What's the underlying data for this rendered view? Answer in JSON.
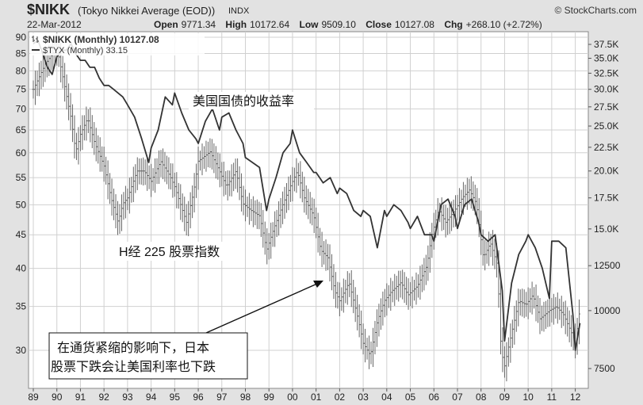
{
  "header": {
    "symbol": "$NIKK",
    "description": "(Tokyo Nikkei Average (EOD))",
    "exchange": "INDX",
    "brand": "© StockCharts.com",
    "date": "22-Mar-2012",
    "open_label": "Open",
    "open_value": "9771.34",
    "high_label": "High",
    "high_value": "10172.64",
    "low_label": "Low",
    "low_value": "9509.10",
    "close_label": "Close",
    "close_value": "10127.08",
    "chg_label": "Chg",
    "chg_value": "+268.10 (+2.72%)"
  },
  "legend": [
    {
      "label": "$NIKK (Monthly) 10127.08",
      "color": "#555555",
      "icon": "ohlc-bar-icon"
    },
    {
      "label": "$TYX (Monthly) 33.15",
      "color": "#333333",
      "icon": "line-icon"
    }
  ],
  "annotations": {
    "treasury": "美国国债的收益率",
    "nikkei": "H经 225 股票指数",
    "callout_line1": "在通货紧缩的影响下，日本",
    "callout_line2": "股票下跌会让美国利率也下跌"
  },
  "colors": {
    "background": "#e2e2e2",
    "plot": "#ffffff",
    "grid": "#cccccc",
    "nikkei": "#555555",
    "tyx": "#333333"
  },
  "chart_data": {
    "type": "line",
    "x_tick_labels": [
      "89",
      "90",
      "91",
      "92",
      "93",
      "94",
      "95",
      "96",
      "97",
      "98",
      "99",
      "00",
      "01",
      "02",
      "03",
      "04",
      "05",
      "06",
      "07",
      "08",
      "09",
      "10",
      "11",
      "12"
    ],
    "left_axis": {
      "ticks": [
        "30",
        "35",
        "40",
        "45",
        "50",
        "55",
        "60",
        "65",
        "70",
        "75",
        "80",
        "85",
        "90"
      ],
      "scale": "log"
    },
    "right_axis": {
      "ticks": [
        "7500",
        "10000",
        "12500",
        "15.0K",
        "17.5K",
        "20.0K",
        "22.5K",
        "25.0K",
        "27.5K",
        "30.0K",
        "32.5K",
        "35.0K",
        "37.5K"
      ],
      "scale": "log"
    },
    "grid": true,
    "series": [
      {
        "name": "$NIKK (Monthly) 10127.08",
        "style": "ohlc-bars",
        "axis": "right",
        "x": [
          1989.0,
          1989.5,
          1990.0,
          1990.3,
          1990.6,
          1990.8,
          1991.0,
          1991.3,
          1991.6,
          1992.0,
          1992.3,
          1992.6,
          1992.8,
          1993.0,
          1993.4,
          1993.7,
          1994.0,
          1994.4,
          1994.8,
          1995.0,
          1995.5,
          1995.8,
          1996.0,
          1996.5,
          1996.9,
          1997.2,
          1997.6,
          1997.9,
          1998.2,
          1998.6,
          1998.9,
          1999.2,
          1999.6,
          1999.9,
          2000.2,
          2000.5,
          2000.9,
          2001.2,
          2001.5,
          2001.8,
          2002.0,
          2002.4,
          2002.8,
          2003.0,
          2003.3,
          2003.6,
          2003.9,
          2004.2,
          2004.6,
          2004.9,
          2005.3,
          2005.7,
          2005.9,
          2006.2,
          2006.5,
          2006.9,
          2007.2,
          2007.5,
          2007.8,
          2008.1,
          2008.4,
          2008.7,
          2008.85,
          2009.0,
          2009.2,
          2009.6,
          2009.9,
          2010.2,
          2010.5,
          2010.9,
          2011.2,
          2011.5,
          2011.9,
          2012.0,
          2012.2
        ],
        "values": [
          30000,
          34000,
          37000,
          31000,
          26000,
          22000,
          24000,
          26000,
          23000,
          20500,
          17500,
          15500,
          17000,
          17500,
          20000,
          20000,
          19000,
          21000,
          19500,
          18500,
          15500,
          18000,
          21000,
          22000,
          20000,
          18500,
          20000,
          17000,
          16500,
          16000,
          13500,
          15000,
          17000,
          18500,
          20000,
          17500,
          16000,
          13500,
          13000,
          11000,
          10500,
          11500,
          9500,
          8500,
          8000,
          9500,
          10500,
          11000,
          11500,
          10800,
          11300,
          12500,
          14500,
          16500,
          15500,
          16500,
          17500,
          18200,
          17000,
          13000,
          14000,
          12500,
          8200,
          7600,
          8500,
          10500,
          10300,
          10800,
          9600,
          10000,
          10200,
          9800,
          8800,
          8500,
          10127
        ]
      },
      {
        "name": "$TYX (Monthly) 33.15",
        "style": "line",
        "axis": "left",
        "x": [
          1989.0,
          1989.2,
          1989.4,
          1989.6,
          1989.8,
          1990.0,
          1990.2,
          1990.4,
          1990.6,
          1990.8,
          1991.0,
          1991.2,
          1991.4,
          1991.6,
          1991.8,
          1992.0,
          1992.2,
          1992.4,
          1992.6,
          1992.8,
          1993.0,
          1993.3,
          1993.6,
          1993.9,
          1994.0,
          1994.3,
          1994.6,
          1994.9,
          1995.0,
          1995.3,
          1995.6,
          1995.9,
          1996.0,
          1996.3,
          1996.6,
          1996.9,
          1997.0,
          1997.3,
          1997.6,
          1997.9,
          1998.0,
          1998.3,
          1998.6,
          1998.9,
          1999.0,
          1999.3,
          1999.6,
          1999.9,
          2000.0,
          2000.3,
          2000.6,
          2000.9,
          2001.0,
          2001.3,
          2001.6,
          2001.9,
          2002.0,
          2002.3,
          2002.6,
          2002.9,
          2003.0,
          2003.3,
          2003.6,
          2003.9,
          2004.0,
          2004.3,
          2004.6,
          2004.9,
          2005.0,
          2005.3,
          2005.6,
          2005.9,
          2006.0,
          2006.3,
          2006.6,
          2006.9,
          2007.0,
          2007.3,
          2007.6,
          2007.9,
          2008.0,
          2008.3,
          2008.6,
          2008.9,
          2009.0,
          2009.3,
          2009.6,
          2009.9,
          2010.0,
          2010.3,
          2010.6,
          2010.9,
          2011.0,
          2011.3,
          2011.6,
          2011.9,
          2012.0,
          2012.2
        ],
        "values": [
          88,
          89,
          85,
          81,
          79,
          84,
          86,
          86,
          88,
          85,
          83,
          83,
          81,
          81,
          78,
          76,
          76,
          75,
          74,
          73,
          71,
          68,
          63,
          58,
          61,
          65,
          73,
          71,
          74,
          69,
          65,
          63,
          62,
          67,
          70,
          65,
          68,
          69,
          65,
          62,
          59,
          58,
          57,
          49,
          51,
          55,
          60,
          62,
          65,
          60,
          58,
          56,
          56,
          54,
          55,
          52,
          53,
          52,
          49,
          48,
          49,
          48,
          43,
          49,
          48,
          50,
          49,
          47,
          46,
          48,
          45,
          45,
          44,
          50,
          51,
          48,
          46,
          50,
          51,
          47,
          45,
          44,
          45,
          37,
          31,
          38,
          42,
          44,
          45,
          43,
          40,
          36,
          44,
          44,
          43,
          34,
          30,
          33
        ]
      }
    ]
  }
}
